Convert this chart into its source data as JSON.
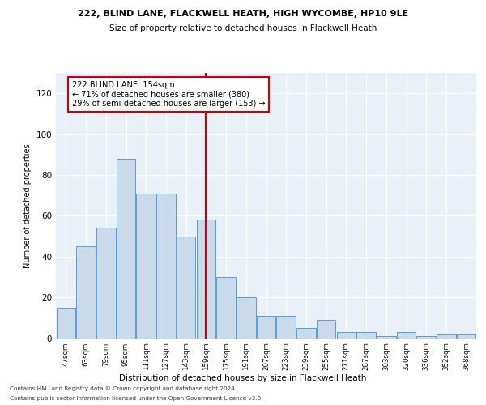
{
  "title1": "222, BLIND LANE, FLACKWELL HEATH, HIGH WYCOMBE, HP10 9LE",
  "title2": "Size of property relative to detached houses in Flackwell Heath",
  "xlabel": "Distribution of detached houses by size in Flackwell Heath",
  "ylabel": "Number of detached properties",
  "categories": [
    "47sqm",
    "63sqm",
    "79sqm",
    "95sqm",
    "111sqm",
    "127sqm",
    "143sqm",
    "159sqm",
    "175sqm",
    "191sqm",
    "207sqm",
    "223sqm",
    "239sqm",
    "255sqm",
    "271sqm",
    "287sqm",
    "303sqm",
    "320sqm",
    "336sqm",
    "352sqm",
    "368sqm"
  ],
  "values": [
    15,
    45,
    54,
    88,
    71,
    71,
    50,
    58,
    30,
    20,
    11,
    11,
    5,
    9,
    3,
    3,
    1,
    3,
    1,
    2,
    2
  ],
  "bar_color": "#c9daea",
  "bar_edge_color": "#5b9bd5",
  "vline_x": 7.0,
  "vline_color": "#cc0000",
  "annotation_text": "222 BLIND LANE: 154sqm\n← 71% of detached houses are smaller (380)\n29% of semi-detached houses are larger (153) →",
  "annotation_box_color": "#ffffff",
  "annotation_box_edge": "#cc0000",
  "footer1": "Contains HM Land Registry data © Crown copyright and database right 2024.",
  "footer2": "Contains public sector information licensed under the Open Government Licence v3.0.",
  "ylim": [
    0,
    130
  ],
  "yticks": [
    0,
    20,
    40,
    60,
    80,
    100,
    120
  ],
  "plot_bg": "#eaf0f8"
}
